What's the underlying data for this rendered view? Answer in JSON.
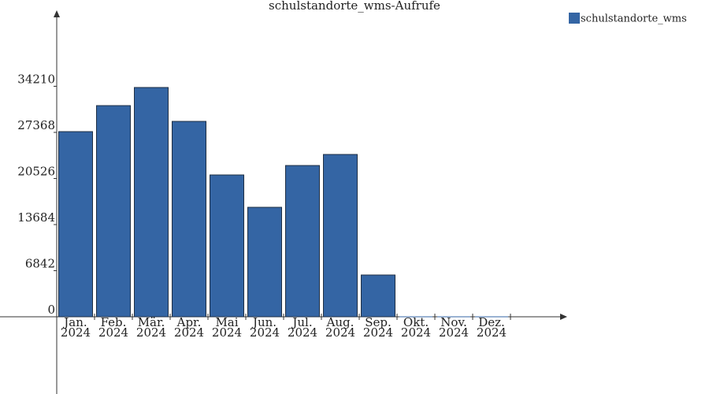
{
  "chart_data": {
    "type": "bar",
    "title": "schulstandorte_wms-Aufrufe",
    "categories": [
      "Jan. 2024",
      "Feb. 2024",
      "Mär. 2024",
      "Apr. 2024",
      "Mai 2024",
      "Jun. 2024",
      "Jul. 2024",
      "Aug. 2024",
      "Sep. 2024",
      "Okt. 2024",
      "Nov. 2024",
      "Dez. 2024"
    ],
    "series": [
      {
        "name": "schulstandorte_wms",
        "color": "#3465a4",
        "values": [
          27480,
          31340,
          34030,
          29000,
          21050,
          16250,
          22450,
          24090,
          6200,
          0,
          0,
          0
        ]
      }
    ],
    "ylim": [
      0,
      45260
    ],
    "yticks": [
      0,
      6842,
      13684,
      20526,
      27368,
      34210
    ],
    "legend": "top-right"
  }
}
